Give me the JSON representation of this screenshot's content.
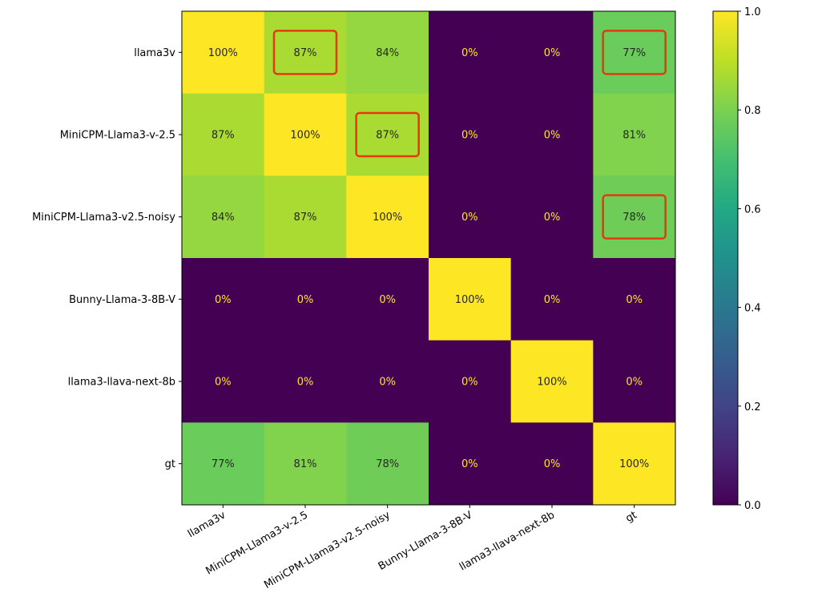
{
  "chart_data": {
    "type": "heatmap",
    "title": "",
    "xlabel": "",
    "ylabel": "",
    "row_labels": [
      "llama3v",
      "MiniCPM-Llama3-v-2.5",
      "MiniCPM-Llama3-v2.5-noisy",
      "Bunny-Llama-3-8B-V",
      "llama3-llava-next-8b",
      "gt"
    ],
    "col_labels": [
      "llama3v",
      "MiniCPM-Llama3-v-2.5",
      "MiniCPM-Llama3-v2.5-noisy",
      "Bunny-Llama-3-8B-V",
      "llama3-llava-next-8b",
      "gt"
    ],
    "values": [
      [
        1.0,
        0.87,
        0.84,
        0.0,
        0.0,
        0.77
      ],
      [
        0.87,
        1.0,
        0.87,
        0.0,
        0.0,
        0.81
      ],
      [
        0.84,
        0.87,
        1.0,
        0.0,
        0.0,
        0.78
      ],
      [
        0.0,
        0.0,
        0.0,
        1.0,
        0.0,
        0.0
      ],
      [
        0.0,
        0.0,
        0.0,
        0.0,
        1.0,
        0.0
      ],
      [
        0.77,
        0.81,
        0.78,
        0.0,
        0.0,
        1.0
      ]
    ],
    "cell_labels": [
      [
        "100%",
        "87%",
        "84%",
        "0%",
        "0%",
        "77%"
      ],
      [
        "87%",
        "100%",
        "87%",
        "0%",
        "0%",
        "81%"
      ],
      [
        "84%",
        "87%",
        "100%",
        "0%",
        "0%",
        "78%"
      ],
      [
        "0%",
        "0%",
        "0%",
        "100%",
        "0%",
        "0%"
      ],
      [
        "0%",
        "0%",
        "0%",
        "0%",
        "100%",
        "0%"
      ],
      [
        "77%",
        "81%",
        "78%",
        "0%",
        "0%",
        "100%"
      ]
    ],
    "highlighted_cells": [
      [
        0,
        1
      ],
      [
        0,
        5
      ],
      [
        1,
        2
      ],
      [
        2,
        5
      ]
    ],
    "colormap": "viridis",
    "colorbar": {
      "range": [
        0.0,
        1.0
      ],
      "ticks": [
        0.0,
        0.2,
        0.4,
        0.6,
        0.8,
        1.0
      ],
      "tick_labels": [
        "0.0",
        "0.2",
        "0.4",
        "0.6",
        "0.8",
        "1.0"
      ]
    },
    "colors": {
      "highlight": "#e8380d",
      "text_dark": "#262626",
      "text_light": "#fde725"
    }
  }
}
